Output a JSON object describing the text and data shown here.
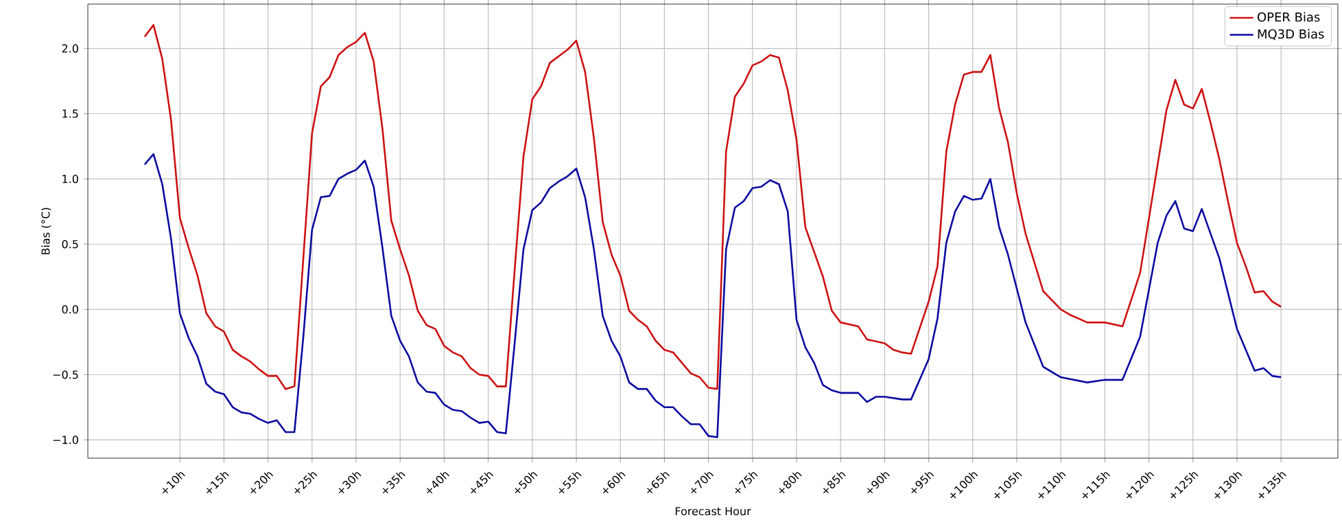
{
  "chart_data": {
    "type": "line",
    "xlabel": "Forecast Hour",
    "ylabel": "Bias (°C)",
    "xlim": [
      -0.45,
      141.45
    ],
    "ylim": [
      -1.14,
      2.34
    ],
    "xticks": [
      {
        "value": 10,
        "label": "+10h"
      },
      {
        "value": 15,
        "label": "+15h"
      },
      {
        "value": 20,
        "label": "+20h"
      },
      {
        "value": 25,
        "label": "+25h"
      },
      {
        "value": 30,
        "label": "+30h"
      },
      {
        "value": 35,
        "label": "+35h"
      },
      {
        "value": 40,
        "label": "+40h"
      },
      {
        "value": 45,
        "label": "+45h"
      },
      {
        "value": 50,
        "label": "+50h"
      },
      {
        "value": 55,
        "label": "+55h"
      },
      {
        "value": 60,
        "label": "+60h"
      },
      {
        "value": 65,
        "label": "+65h"
      },
      {
        "value": 70,
        "label": "+70h"
      },
      {
        "value": 75,
        "label": "+75h"
      },
      {
        "value": 80,
        "label": "+80h"
      },
      {
        "value": 85,
        "label": "+85h"
      },
      {
        "value": 90,
        "label": "+90h"
      },
      {
        "value": 95,
        "label": "+95h"
      },
      {
        "value": 100,
        "label": "+100h"
      },
      {
        "value": 105,
        "label": "+105h"
      },
      {
        "value": 110,
        "label": "+110h"
      },
      {
        "value": 115,
        "label": "+115h"
      },
      {
        "value": 120,
        "label": "+120h"
      },
      {
        "value": 125,
        "label": "+125h"
      },
      {
        "value": 130,
        "label": "+130h"
      },
      {
        "value": 135,
        "label": "+135h"
      }
    ],
    "yticks": [
      {
        "value": -1,
        "label": "−1.0"
      },
      {
        "value": -0.5,
        "label": "−0.5"
      },
      {
        "value": 0,
        "label": "0.0"
      },
      {
        "value": 0.5,
        "label": "0.5"
      },
      {
        "value": 1,
        "label": "1.0"
      },
      {
        "value": 1.5,
        "label": "1.5"
      },
      {
        "value": 2,
        "label": "2.0"
      }
    ],
    "grid": true,
    "legend": "top right",
    "marker": "none",
    "line_style": "solid",
    "series": [
      {
        "name": "OPER Bias",
        "color": "#cc1111",
        "x": [
          6,
          7,
          8,
          9,
          10,
          11,
          12,
          13,
          14,
          15,
          16,
          17,
          18,
          19,
          20,
          21,
          22,
          23,
          24,
          25,
          26,
          27,
          28,
          29,
          30,
          31,
          32,
          33,
          34,
          35,
          36,
          37,
          38,
          39,
          40,
          41,
          42,
          43,
          44,
          45,
          46,
          47,
          48,
          49,
          50,
          51,
          52,
          53,
          54,
          55,
          56,
          57,
          58,
          59,
          60,
          61,
          62,
          63,
          64,
          65,
          66,
          67,
          68,
          69,
          70,
          71,
          72,
          73,
          74,
          75,
          76,
          77,
          78,
          79,
          80,
          81,
          82,
          83,
          84,
          85,
          87,
          88,
          90,
          91,
          92,
          93,
          95,
          96,
          97,
          98,
          99,
          100,
          101,
          102,
          103,
          104,
          105,
          106,
          108,
          110,
          111,
          113,
          115,
          117,
          119,
          122,
          123,
          124,
          125,
          126,
          127,
          128,
          129,
          130,
          131,
          132,
          133,
          134,
          135
        ],
        "values": [
          2.09,
          2.18,
          1.92,
          1.45,
          0.7,
          0.47,
          0.26,
          -0.03,
          -0.13,
          -0.17,
          -0.31,
          -0.36,
          -0.4,
          -0.46,
          -0.51,
          -0.51,
          -0.61,
          -0.59,
          0.38,
          1.35,
          1.71,
          1.78,
          1.95,
          2.01,
          2.05,
          2.12,
          1.9,
          1.38,
          0.68,
          0.46,
          0.26,
          -0.01,
          -0.12,
          -0.15,
          -0.28,
          -0.33,
          -0.36,
          -0.45,
          -0.5,
          -0.51,
          -0.59,
          -0.59,
          0.3,
          1.17,
          1.61,
          1.71,
          1.89,
          1.94,
          1.99,
          2.06,
          1.82,
          1.31,
          0.67,
          0.42,
          0.26,
          -0.01,
          -0.08,
          -0.13,
          -0.24,
          -0.31,
          -0.33,
          -0.41,
          -0.49,
          -0.52,
          -0.6,
          -0.61,
          1.21,
          1.63,
          1.73,
          1.87,
          1.9,
          1.95,
          1.93,
          1.68,
          1.3,
          0.63,
          0.44,
          0.25,
          -0.01,
          -0.1,
          -0.13,
          -0.23,
          -0.26,
          -0.31,
          -0.33,
          -0.34,
          0.06,
          0.33,
          1.21,
          1.57,
          1.8,
          1.82,
          1.82,
          1.95,
          1.54,
          1.28,
          0.89,
          0.58,
          0.14,
          0.0,
          -0.04,
          -0.1,
          -0.1,
          -0.13,
          0.28,
          1.53,
          1.76,
          1.57,
          1.54,
          1.69,
          1.43,
          1.15,
          0.82,
          0.51,
          0.33,
          0.13,
          0.14,
          0.06,
          0.02
        ]
      },
      {
        "name": "MQ3D Bias",
        "color": "#0a0aa0",
        "x": [
          6,
          7,
          8,
          9,
          10,
          11,
          12,
          13,
          14,
          15,
          16,
          17,
          18,
          19,
          20,
          21,
          22,
          23,
          24,
          25,
          26,
          27,
          28,
          29,
          30,
          31,
          32,
          33,
          34,
          35,
          36,
          37,
          38,
          39,
          40,
          41,
          42,
          43,
          44,
          45,
          46,
          47,
          48,
          49,
          50,
          51,
          52,
          53,
          54,
          55,
          56,
          57,
          58,
          59,
          60,
          61,
          62,
          63,
          64,
          65,
          66,
          67,
          68,
          69,
          70,
          71,
          72,
          73,
          74,
          75,
          76,
          77,
          78,
          79,
          80,
          81,
          82,
          83,
          84,
          85,
          87,
          88,
          89,
          90,
          92,
          93,
          95,
          96,
          97,
          98,
          99,
          100,
          101,
          102,
          103,
          104,
          106,
          108,
          110,
          113,
          115,
          117,
          119,
          121,
          122,
          123,
          124,
          125,
          126,
          128,
          130,
          132,
          133,
          134,
          135
        ],
        "values": [
          1.11,
          1.19,
          0.96,
          0.54,
          -0.03,
          -0.22,
          -0.36,
          -0.57,
          -0.63,
          -0.65,
          -0.75,
          -0.79,
          -0.8,
          -0.84,
          -0.87,
          -0.85,
          -0.94,
          -0.94,
          -0.22,
          0.61,
          0.86,
          0.87,
          1.0,
          1.04,
          1.07,
          1.14,
          0.94,
          0.47,
          -0.05,
          -0.24,
          -0.36,
          -0.56,
          -0.63,
          -0.64,
          -0.73,
          -0.77,
          -0.78,
          -0.83,
          -0.87,
          -0.86,
          -0.94,
          -0.95,
          -0.26,
          0.46,
          0.76,
          0.82,
          0.93,
          0.98,
          1.02,
          1.08,
          0.86,
          0.46,
          -0.05,
          -0.24,
          -0.36,
          -0.56,
          -0.61,
          -0.61,
          -0.7,
          -0.75,
          -0.75,
          -0.82,
          -0.88,
          -0.88,
          -0.97,
          -0.98,
          0.46,
          0.78,
          0.83,
          0.93,
          0.94,
          0.99,
          0.96,
          0.75,
          -0.08,
          -0.29,
          -0.41,
          -0.58,
          -0.62,
          -0.64,
          -0.64,
          -0.71,
          -0.67,
          -0.67,
          -0.69,
          -0.69,
          -0.38,
          -0.07,
          0.51,
          0.75,
          0.87,
          0.84,
          0.85,
          1.0,
          0.63,
          0.42,
          -0.1,
          -0.44,
          -0.52,
          -0.56,
          -0.54,
          -0.54,
          -0.21,
          0.51,
          0.72,
          0.83,
          0.62,
          0.6,
          0.77,
          0.39,
          -0.15,
          -0.47,
          -0.45,
          -0.51,
          -0.52
        ]
      }
    ]
  }
}
